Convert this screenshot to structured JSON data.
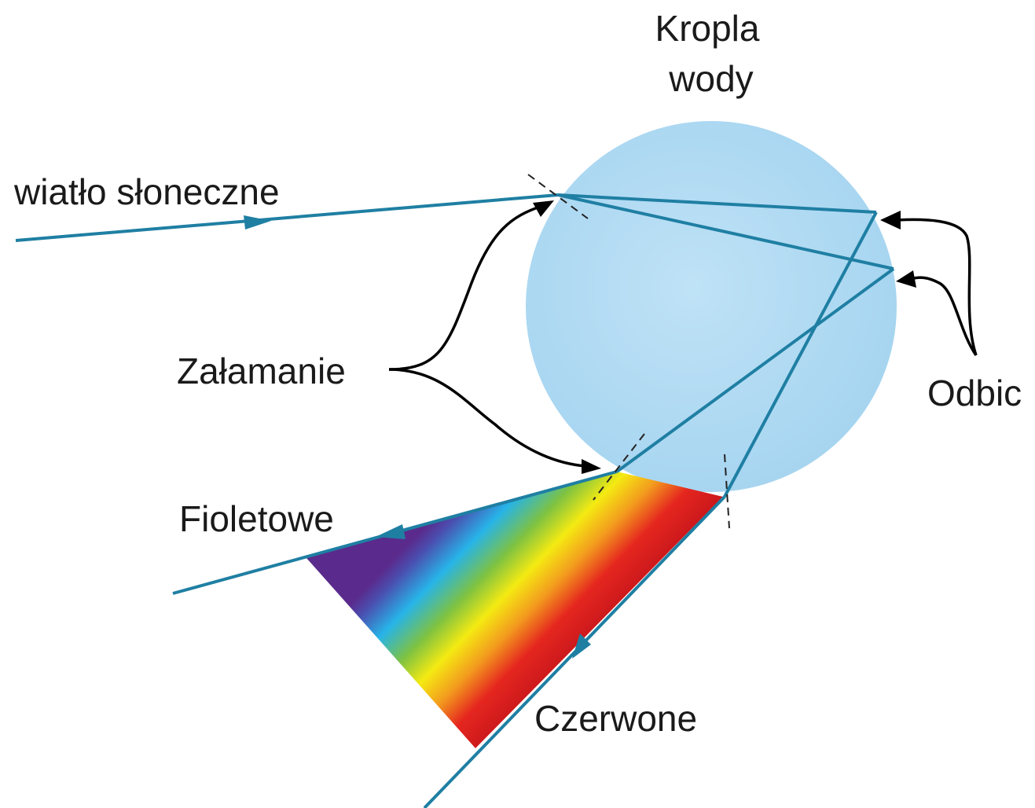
{
  "labels": {
    "drop": {
      "line1": "Kropla",
      "line2": "wody"
    },
    "sunlight": "wiatło słoneczne",
    "refraction": "Załamanie",
    "reflection": "Odbic",
    "violet": "Fioletowe",
    "red": "Czerwone"
  }
}
